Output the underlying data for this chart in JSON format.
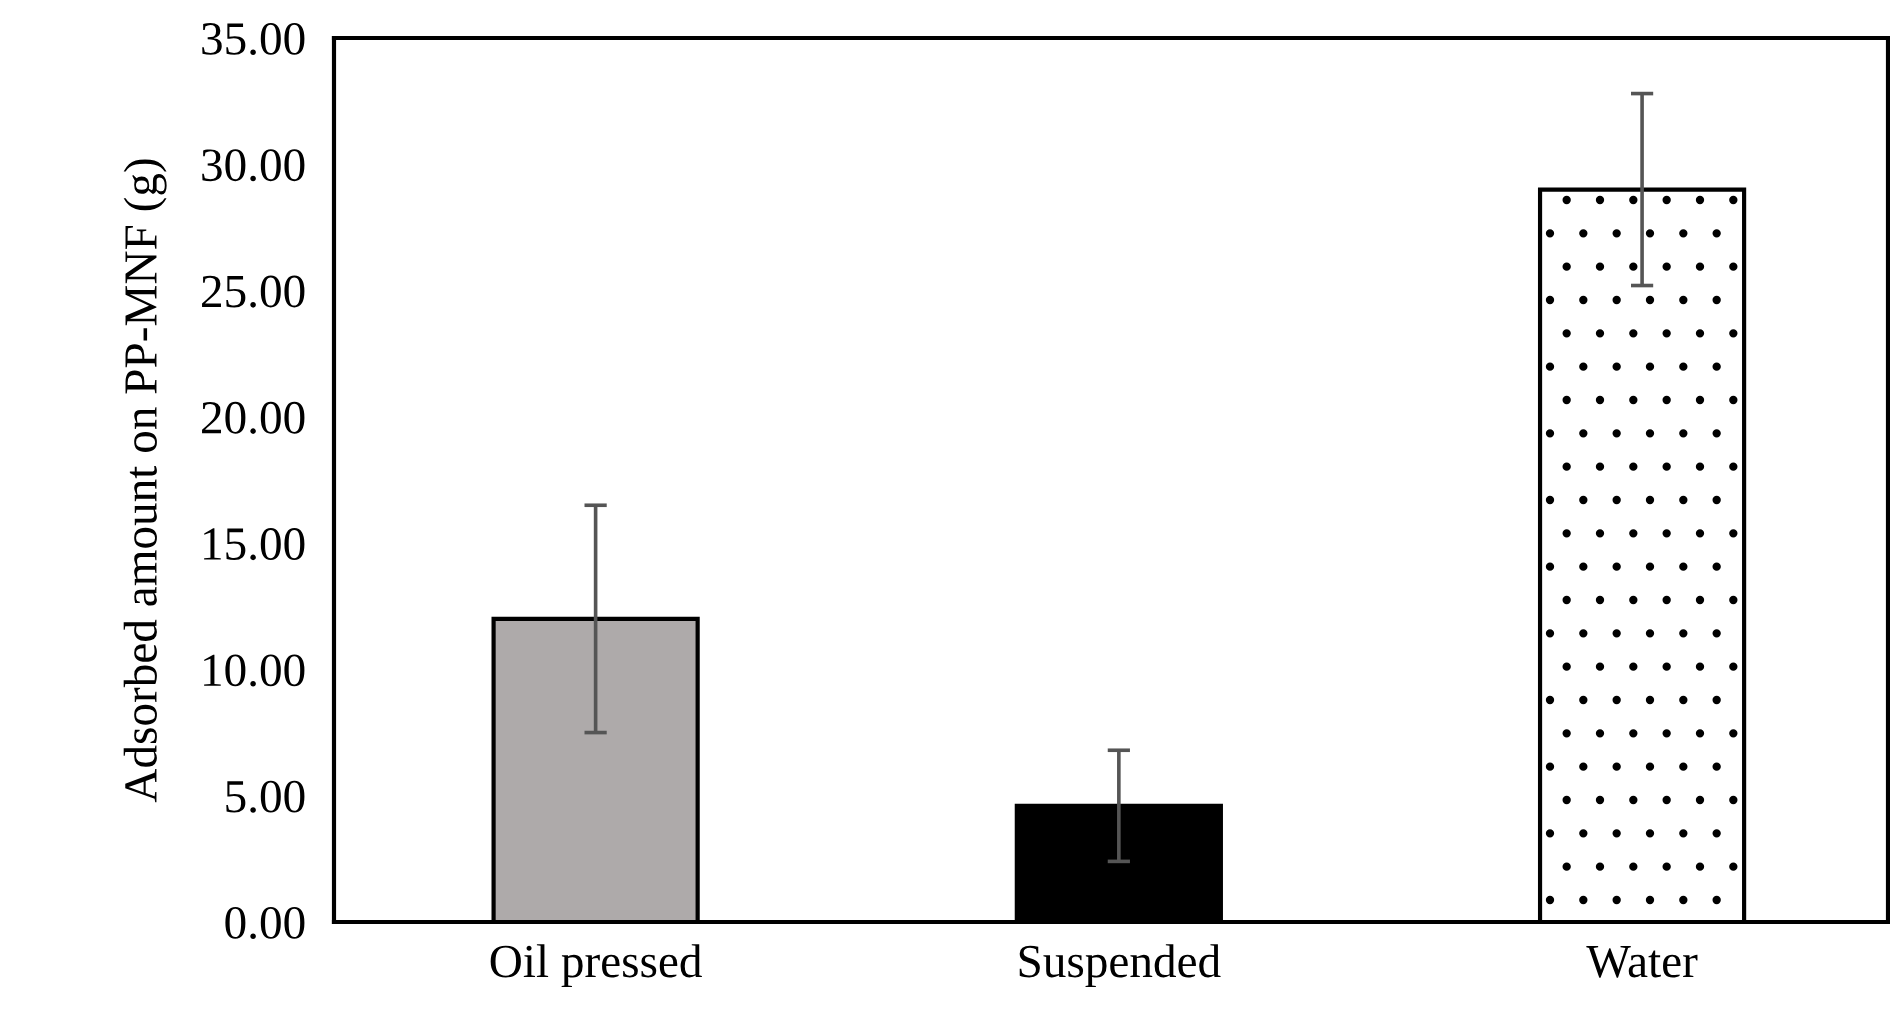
{
  "chart_data": {
    "type": "bar",
    "ylabel": "Adsorbed amount on PP-MNF (g)",
    "categories": [
      "Oil pressed",
      "Suspended",
      "Water"
    ],
    "values": [
      12.0,
      4.6,
      29.0
    ],
    "errors": [
      4.5,
      2.2,
      3.8
    ],
    "colors": [
      "#aeaaaa",
      "#000000",
      "#ffffff"
    ],
    "ylim": [
      0,
      35
    ],
    "yticks": [
      {
        "value": 0,
        "label": "0.00"
      },
      {
        "value": 5,
        "label": "5.00"
      },
      {
        "value": 10,
        "label": "10.00"
      },
      {
        "value": 15,
        "label": "15.00"
      },
      {
        "value": 20,
        "label": "20.00"
      },
      {
        "value": 25,
        "label": "25.00"
      },
      {
        "value": 30,
        "label": "30.00"
      },
      {
        "value": 35,
        "label": "35.00"
      }
    ],
    "grid": false
  }
}
